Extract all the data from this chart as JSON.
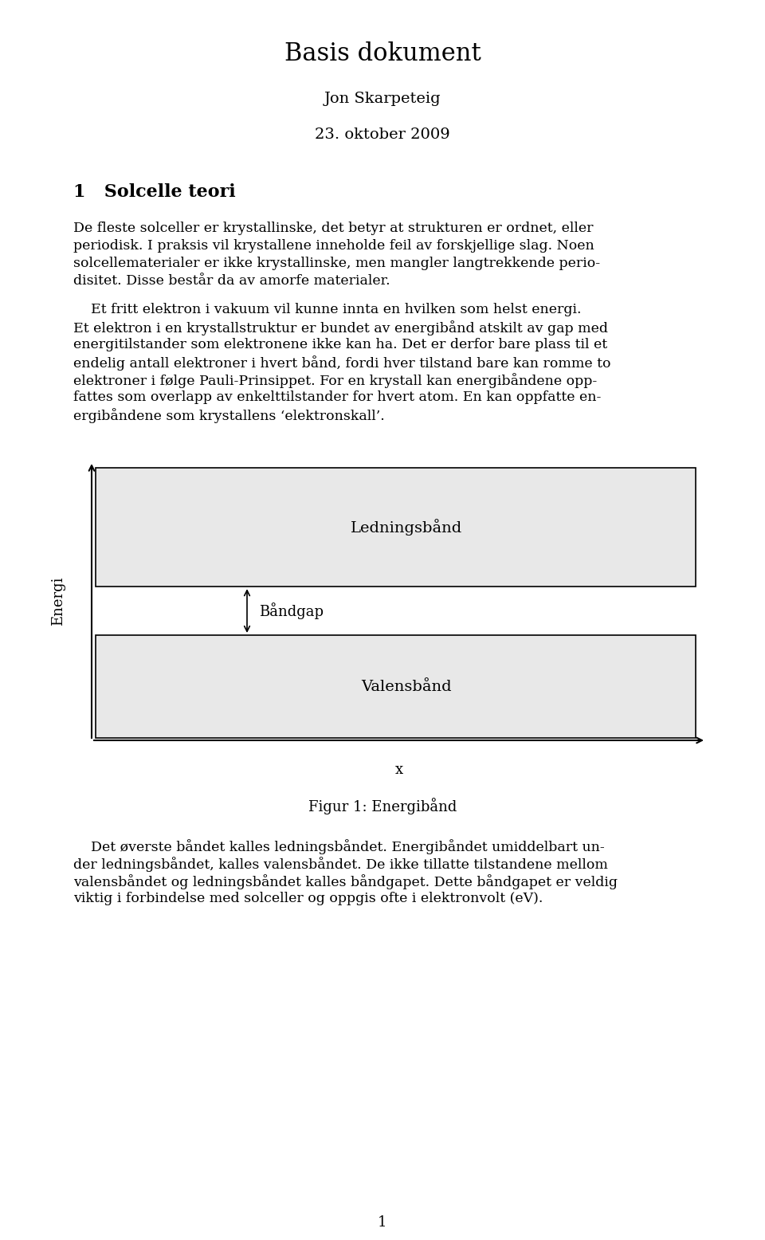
{
  "title": "Basis dokument",
  "author": "Jon Skarpeteig",
  "date": "23. oktober 2009",
  "section": "1   Solcelle teori",
  "para1_lines": [
    "De fleste solceller er krystallinske, det betyr at strukturen er ordnet, eller",
    "periodisk. I praksis vil krystallene inneholde feil av forskjellige slag. Noen",
    "solcellematerialer er ikke krystallinske, men mangler langtrekkende perio-",
    "disitet. Disse består da av amorfe materialer."
  ],
  "para2_lines": [
    "    Et fritt elektron i vakuum vil kunne innta en hvilken som helst energi.",
    "Et elektron i en krystallstruktur er bundet av energibånd atskilt av gap med",
    "energitilstander som elektronene ikke kan ha. Det er derfor bare plass til et",
    "endelig antall elektroner i hvert bånd, fordi hver tilstand bare kan romme to",
    "elektroner i følge Pauli-Prinsippet. For en krystall kan energibåndene opp-",
    "fattes som overlapp av enkelttilstander for hvert atom. En kan oppfatte en-",
    "ergibåndene som krystallens ‘elektronskall’."
  ],
  "para3_lines": [
    "    Det øverste båndet kalles ledningsbåndet. Energibåndet umiddelbart un-",
    "der ledningsbåndet, kalles valensbåndet. De ikke tillatte tilstandene mellom",
    "valensbåndet og ledningsbåndet kalles båndgapet. Dette båndgapet er veldig",
    "viktig i forbindelse med solceller og oppgis ofte i elektronvolt (eV)."
  ],
  "ledningsband_label": "Ledningsbånd",
  "bandgap_label": "Båndgap",
  "valensband_label": "Valensbånd",
  "x_label": "x",
  "y_label": "Energi",
  "figure_caption": "Figur 1: Energibånd",
  "page_number": "1",
  "band_fill_color": "#e8e8e8",
  "band_edge_color": "#000000",
  "background_color": "#ffffff",
  "text_color": "#000000",
  "body_fontsize": 12.5,
  "title_fontsize": 22,
  "author_fontsize": 14,
  "date_fontsize": 14,
  "section_fontsize": 16,
  "label_fontsize": 14,
  "caption_fontsize": 13
}
